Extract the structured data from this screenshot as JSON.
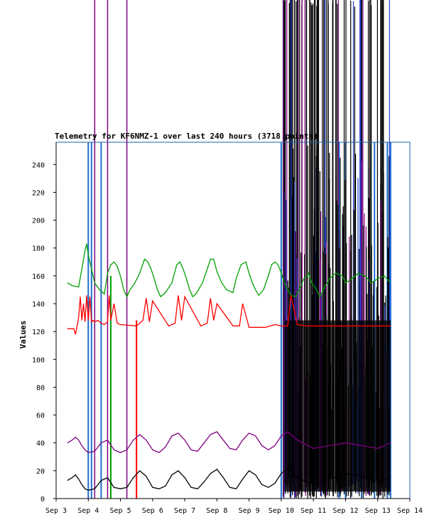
{
  "chart_data": {
    "type": "line",
    "title": "Telemetry for KF6NMZ-1 over last 240 hours (3718 points)",
    "xlabel": "",
    "ylabel": "Values",
    "ylim": [
      0,
      256
    ],
    "xlim": [
      0,
      11
    ],
    "x_ticks": [
      "Sep 3",
      "Sep 4",
      "Sep 5",
      "Sep 6",
      "Sep 7",
      "Sep 8",
      "Sep 9",
      "Sep 10",
      "Sep 11",
      "Sep 12",
      "Sep 13",
      "Sep 14"
    ],
    "y_ticks": [
      0,
      20,
      40,
      60,
      80,
      100,
      120,
      140,
      160,
      180,
      200,
      220,
      240
    ],
    "grid": false,
    "legend": "none",
    "series": [
      {
        "color": "#00a000",
        "x": [
          0.35,
          0.5,
          0.7,
          0.8,
          0.9,
          0.95,
          1.0,
          1.05,
          1.1,
          1.2,
          1.35,
          1.5,
          1.6,
          1.7,
          1.8,
          1.9,
          2.0,
          2.1,
          2.2,
          2.3,
          2.45,
          2.6,
          2.75,
          2.85,
          2.95,
          3.05,
          3.15,
          3.25,
          3.4,
          3.6,
          3.75,
          3.85,
          3.95,
          4.05,
          4.15,
          4.25,
          4.35,
          4.55,
          4.7,
          4.8,
          4.9,
          5.0,
          5.15,
          5.3,
          5.5,
          5.6,
          5.75,
          5.9,
          6.0,
          6.1,
          6.2,
          6.3,
          6.45,
          6.6,
          6.7,
          6.8,
          6.9,
          7.0,
          7.1,
          7.2,
          7.3,
          7.45,
          7.6,
          7.7,
          7.8,
          7.85,
          7.95,
          8.1,
          8.2,
          8.35,
          8.5,
          8.7,
          8.9,
          9.0,
          9.2,
          9.4,
          9.6,
          9.8,
          10.0,
          10.2,
          10.4
        ],
        "y": [
          155,
          153,
          152,
          165,
          178,
          183,
          175,
          170,
          165,
          155,
          150,
          147,
          162,
          168,
          170,
          167,
          160,
          150,
          145,
          150,
          155,
          162,
          172,
          170,
          165,
          158,
          150,
          145,
          148,
          155,
          168,
          170,
          165,
          158,
          150,
          145,
          147,
          155,
          165,
          172,
          172,
          163,
          155,
          150,
          148,
          158,
          168,
          170,
          162,
          155,
          150,
          146,
          150,
          160,
          168,
          170,
          168,
          162,
          155,
          150,
          146,
          145,
          152,
          158,
          160,
          162,
          155,
          150,
          145,
          152,
          158,
          162,
          160,
          155,
          158,
          162,
          160,
          155,
          158,
          160,
          155
        ]
      },
      {
        "color": "#ff0000",
        "x": [
          0.35,
          0.55,
          0.6,
          0.7,
          0.75,
          0.8,
          0.85,
          0.9,
          0.95,
          1.0,
          1.05,
          1.1,
          1.15,
          1.2,
          1.3,
          1.4,
          1.5,
          1.6,
          1.65,
          1.7,
          1.8,
          1.9,
          2.0,
          2.5,
          2.7,
          2.8,
          2.9,
          3.0,
          3.5,
          3.7,
          3.8,
          3.9,
          4.0,
          4.5,
          4.7,
          4.8,
          4.9,
          5.0,
          5.5,
          5.7,
          5.8,
          6.0,
          6.5,
          6.8,
          7.0,
          7.2,
          7.3,
          7.5,
          7.8,
          8.0,
          8.5,
          9.0,
          9.5,
          10.0,
          10.4
        ],
        "y": [
          122,
          122,
          118,
          130,
          145,
          128,
          140,
          127,
          146,
          128,
          145,
          127,
          128,
          127,
          128,
          126,
          125,
          127,
          146,
          128,
          140,
          126,
          125,
          124,
          128,
          144,
          127,
          142,
          124,
          126,
          146,
          128,
          145,
          124,
          126,
          144,
          128,
          140,
          124,
          124,
          140,
          123,
          123,
          125,
          124,
          124,
          146,
          125,
          124,
          124,
          124,
          124,
          124,
          124,
          124
        ]
      },
      {
        "color": "#800080",
        "x": [
          0.35,
          0.5,
          0.6,
          0.7,
          0.8,
          0.9,
          1.0,
          1.2,
          1.4,
          1.6,
          1.8,
          2.0,
          2.2,
          2.4,
          2.6,
          2.8,
          3.0,
          3.2,
          3.4,
          3.6,
          3.8,
          4.0,
          4.2,
          4.4,
          4.6,
          4.8,
          5.0,
          5.2,
          5.4,
          5.6,
          5.8,
          6.0,
          6.2,
          6.4,
          6.6,
          6.8,
          7.0,
          7.2,
          7.5,
          8.0,
          8.5,
          9.0,
          9.5,
          10.0,
          10.4
        ],
        "y": [
          40,
          42,
          44,
          42,
          38,
          35,
          33,
          34,
          40,
          42,
          35,
          33,
          35,
          42,
          46,
          42,
          35,
          33,
          37,
          45,
          47,
          42,
          35,
          34,
          40,
          46,
          48,
          42,
          36,
          35,
          42,
          47,
          45,
          38,
          35,
          38,
          45,
          48,
          42,
          36,
          38,
          40,
          38,
          36,
          40
        ]
      },
      {
        "color": "#000000",
        "x": [
          0.35,
          0.5,
          0.6,
          0.7,
          0.8,
          0.9,
          1.0,
          1.2,
          1.4,
          1.6,
          1.8,
          2.0,
          2.2,
          2.4,
          2.6,
          2.8,
          3.0,
          3.2,
          3.4,
          3.6,
          3.8,
          4.0,
          4.2,
          4.4,
          4.6,
          4.8,
          5.0,
          5.2,
          5.4,
          5.6,
          5.8,
          6.0,
          6.2,
          6.4,
          6.6,
          6.8,
          7.0,
          7.2,
          7.5,
          8.0,
          8.5,
          9.0,
          9.5,
          10.0,
          10.4
        ],
        "y": [
          13,
          15,
          17,
          14,
          10,
          7,
          6,
          7,
          13,
          15,
          8,
          7,
          8,
          15,
          20,
          16,
          8,
          7,
          9,
          17,
          20,
          15,
          8,
          7,
          12,
          18,
          21,
          15,
          8,
          7,
          14,
          20,
          17,
          10,
          8,
          11,
          18,
          22,
          15,
          10,
          14,
          18,
          16,
          12,
          15
        ]
      }
    ]
  }
}
